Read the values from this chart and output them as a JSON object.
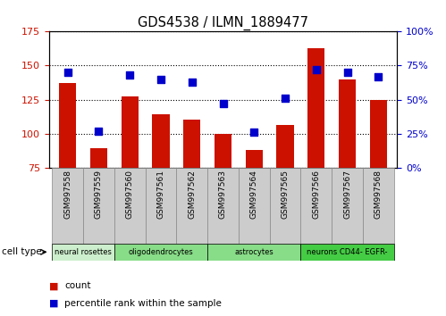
{
  "title": "GDS4538 / ILMN_1889477",
  "samples": [
    "GSM997558",
    "GSM997559",
    "GSM997560",
    "GSM997561",
    "GSM997562",
    "GSM997563",
    "GSM997564",
    "GSM997565",
    "GSM997566",
    "GSM997567",
    "GSM997568"
  ],
  "bar_values": [
    137,
    89,
    127,
    114,
    110,
    100,
    88,
    106,
    163,
    140,
    125
  ],
  "scatter_values": [
    70,
    27,
    68,
    65,
    63,
    47,
    26,
    51,
    72,
    70,
    67
  ],
  "ylim_left": [
    75,
    175
  ],
  "ylim_right": [
    0,
    100
  ],
  "yticks_left": [
    75,
    100,
    125,
    150,
    175
  ],
  "yticks_right": [
    0,
    25,
    50,
    75,
    100
  ],
  "bar_color": "#CC1100",
  "scatter_color": "#0000CC",
  "cell_groups": [
    {
      "label": "neural rosettes",
      "start": 0,
      "end": 2,
      "color": "#CCEECC"
    },
    {
      "label": "oligodendrocytes",
      "start": 2,
      "end": 5,
      "color": "#88DD88"
    },
    {
      "label": "astrocytes",
      "start": 5,
      "end": 8,
      "color": "#88DD88"
    },
    {
      "label": "neurons CD44- EGFR-",
      "start": 8,
      "end": 11,
      "color": "#44CC44"
    }
  ],
  "cell_type_label": "cell type",
  "legend_count": "count",
  "legend_percentile": "percentile rank within the sample",
  "tick_color_left": "#CC1100",
  "tick_color_right": "#0000CC",
  "sample_box_color": "#CCCCCC",
  "sample_box_edge": "#888888"
}
